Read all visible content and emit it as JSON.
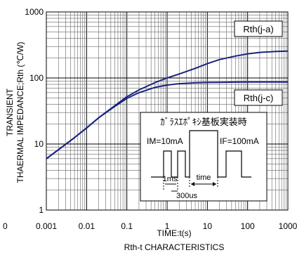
{
  "chart_data": {
    "type": "line",
    "title": "Rth-t CHARACTERISTICS",
    "xlabel": "TIME:t(s)",
    "ylabel_lines": [
      "TRANSIENT",
      "THAERMAL IMPEDANCE;Rth (℃/W)"
    ],
    "xscale": "log",
    "yscale": "log",
    "xlim": [
      0.001,
      1000
    ],
    "ylim": [
      1,
      1000
    ],
    "x_tick_labels": [
      "0.001",
      "0.01",
      "0.1",
      "1",
      "10",
      "100",
      "1000"
    ],
    "y_tick_labels": [
      "1",
      "10",
      "100",
      "1000"
    ],
    "grid": true,
    "series": [
      {
        "name": "Rth(j-a)",
        "color": "#1a237e",
        "x": [
          0.001,
          0.002,
          0.005,
          0.01,
          0.02,
          0.05,
          0.1,
          0.2,
          0.5,
          1,
          2,
          5,
          10,
          20,
          50,
          100,
          200,
          500,
          1000
        ],
        "y": [
          6,
          8.2,
          12.5,
          17.5,
          25,
          38,
          52,
          66,
          85,
          100,
          115,
          140,
          165,
          190,
          215,
          232,
          244,
          252,
          255
        ]
      },
      {
        "name": "Rth(j-c)",
        "color": "#1a237e",
        "x": [
          0.001,
          0.002,
          0.005,
          0.01,
          0.02,
          0.05,
          0.1,
          0.2,
          0.5,
          1,
          2,
          5,
          10,
          20,
          50,
          100,
          200,
          500,
          1000
        ],
        "y": [
          6,
          8.2,
          12.5,
          17.5,
          25,
          37,
          49,
          60,
          72,
          78,
          82,
          84.5,
          85.5,
          86,
          86.5,
          86.8,
          87,
          87,
          87
        ]
      }
    ],
    "legend_labels": [
      "Rth(j-a)",
      "Rth(j-c)"
    ],
    "inset": {
      "title": "ｶﾞﾗｽｴﾎﾟｷｼ基板実装時",
      "im_label": "IM=10mA",
      "if_label": "IF=100mA",
      "ms_label": "1ms",
      "time_label": "time",
      "us_label": "300us"
    },
    "stray_label": "0"
  }
}
